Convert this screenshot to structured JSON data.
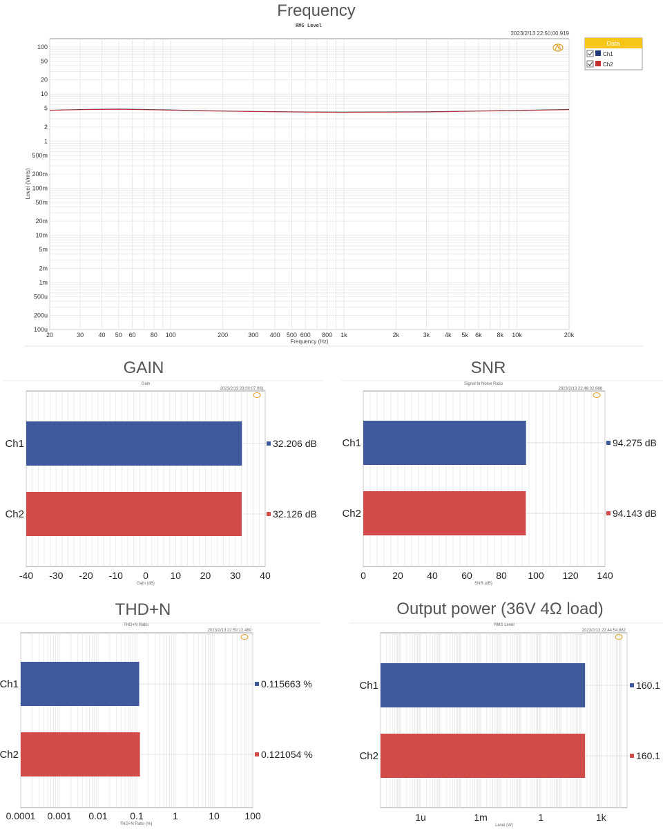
{
  "colors": {
    "ch1": "#3e5a9c",
    "ch2": "#d24b4b",
    "grid": "#dddddd",
    "legend_header": "#f5c518"
  },
  "icons": {
    "logo": "ap-logo-icon",
    "checkbox": "checkbox-checked-icon"
  },
  "chart_data": [
    {
      "type": "line",
      "title": "Frequency",
      "subtitle": "RMS Level",
      "timestamp": "2023/2/13 22:50:00.919",
      "xlabel": "Frequency (Hz)",
      "ylabel": "Level (Vrms)",
      "xscale": "log",
      "yscale": "log",
      "xlim": [
        20,
        20000
      ],
      "ylim": [
        0.0001,
        150
      ],
      "xticks": [
        {
          "v": 20,
          "l": "20"
        },
        {
          "v": 30,
          "l": "30"
        },
        {
          "v": 40,
          "l": "40"
        },
        {
          "v": 50,
          "l": "50"
        },
        {
          "v": 60,
          "l": "60"
        },
        {
          "v": 80,
          "l": "80"
        },
        {
          "v": 100,
          "l": "100"
        },
        {
          "v": 200,
          "l": "200"
        },
        {
          "v": 300,
          "l": "300"
        },
        {
          "v": 400,
          "l": "400"
        },
        {
          "v": 500,
          "l": "500"
        },
        {
          "v": 600,
          "l": "600"
        },
        {
          "v": 800,
          "l": "800"
        },
        {
          "v": 1000,
          "l": "1k"
        },
        {
          "v": 2000,
          "l": "2k"
        },
        {
          "v": 3000,
          "l": "3k"
        },
        {
          "v": 4000,
          "l": "4k"
        },
        {
          "v": 5000,
          "l": "5k"
        },
        {
          "v": 6000,
          "l": "6k"
        },
        {
          "v": 8000,
          "l": "8k"
        },
        {
          "v": 10000,
          "l": "10k"
        },
        {
          "v": 20000,
          "l": "20k"
        }
      ],
      "yticks": [
        {
          "v": 100,
          "l": "100"
        },
        {
          "v": 50,
          "l": "50"
        },
        {
          "v": 20,
          "l": "20"
        },
        {
          "v": 10,
          "l": "10"
        },
        {
          "v": 5,
          "l": "5"
        },
        {
          "v": 2,
          "l": "2"
        },
        {
          "v": 1,
          "l": "1"
        },
        {
          "v": 0.5,
          "l": "500m"
        },
        {
          "v": 0.2,
          "l": "200m"
        },
        {
          "v": 0.1,
          "l": "100m"
        },
        {
          "v": 0.05,
          "l": "50m"
        },
        {
          "v": 0.02,
          "l": "20m"
        },
        {
          "v": 0.01,
          "l": "10m"
        },
        {
          "v": 0.005,
          "l": "5m"
        },
        {
          "v": 0.002,
          "l": "2m"
        },
        {
          "v": 0.001,
          "l": "1m"
        },
        {
          "v": 0.0005,
          "l": "500u"
        },
        {
          "v": 0.0002,
          "l": "200u"
        },
        {
          "v": 0.0001,
          "l": "100u"
        }
      ],
      "legend": {
        "title": "Data",
        "position": "right"
      },
      "series": [
        {
          "name": "Ch1",
          "x": [
            20,
            30,
            50,
            80,
            150,
            300,
            600,
            1000,
            3000,
            6000,
            10000,
            20000
          ],
          "y": [
            4.55,
            4.7,
            4.8,
            4.68,
            4.45,
            4.3,
            4.18,
            4.15,
            4.22,
            4.38,
            4.5,
            4.72
          ]
        },
        {
          "name": "Ch2",
          "x": [
            20,
            30,
            50,
            80,
            150,
            300,
            600,
            1000,
            3000,
            6000,
            10000,
            20000
          ],
          "y": [
            4.5,
            4.65,
            4.75,
            4.63,
            4.4,
            4.25,
            4.13,
            4.1,
            4.17,
            4.33,
            4.45,
            4.67
          ]
        }
      ]
    },
    {
      "type": "bar",
      "title": "GAIN",
      "subtitle": "Gain",
      "timestamp": "2023/2/13 23:00:07.061",
      "xlabel": "Gain (dB)",
      "xlim": [
        -40,
        40
      ],
      "xticks": [
        {
          "v": -40,
          "l": "-40"
        },
        {
          "v": -30,
          "l": "-30"
        },
        {
          "v": -20,
          "l": "-20"
        },
        {
          "v": -10,
          "l": "-10"
        },
        {
          "v": 0,
          "l": "0"
        },
        {
          "v": 10,
          "l": "10"
        },
        {
          "v": 20,
          "l": "20"
        },
        {
          "v": 30,
          "l": "30"
        },
        {
          "v": 40,
          "l": "40"
        }
      ],
      "categories": [
        "Ch1",
        "Ch2"
      ],
      "values": [
        32.206,
        32.126
      ],
      "value_labels": [
        "32.206  dB",
        "32.126  dB"
      ]
    },
    {
      "type": "bar",
      "title": "SNR",
      "subtitle": "Signal to Noise Ratio",
      "timestamp": "2023/2/13 22:46:02.688",
      "xlabel": "SNR (dB)",
      "xlim": [
        0,
        140
      ],
      "xticks": [
        {
          "v": 0,
          "l": "0"
        },
        {
          "v": 20,
          "l": "20"
        },
        {
          "v": 40,
          "l": "40"
        },
        {
          "v": 60,
          "l": "60"
        },
        {
          "v": 80,
          "l": "80"
        },
        {
          "v": 100,
          "l": "100"
        },
        {
          "v": 120,
          "l": "120"
        },
        {
          "v": 140,
          "l": "140"
        }
      ],
      "categories": [
        "Ch1",
        "Ch2"
      ],
      "values": [
        94.275,
        94.143
      ],
      "value_labels": [
        "94.275  dB",
        "94.143  dB"
      ]
    },
    {
      "type": "bar",
      "title": "THD+N",
      "subtitle": "THD+N Ratio",
      "timestamp": "2023/2/13 22:50:12.480",
      "xlabel": "THD+N Ratio (%)",
      "xscale": "log",
      "xlim": [
        0.0001,
        100
      ],
      "xticks": [
        {
          "v": 0.0001,
          "l": "0.0001"
        },
        {
          "v": 0.001,
          "l": "0.001"
        },
        {
          "v": 0.01,
          "l": "0.01"
        },
        {
          "v": 0.1,
          "l": "0.1"
        },
        {
          "v": 1,
          "l": "1"
        },
        {
          "v": 10,
          "l": "10"
        },
        {
          "v": 100,
          "l": "100"
        }
      ],
      "categories": [
        "Ch1",
        "Ch2"
      ],
      "values": [
        0.115663,
        0.121054
      ],
      "value_labels": [
        "0.115663 %",
        "0.121054 %"
      ]
    },
    {
      "type": "bar",
      "title": "Output power (36V 4Ω load)",
      "subtitle": "RMS Level",
      "timestamp": "2023/2/13 22:44:54.882",
      "xlabel": "Level (W)",
      "xscale": "log",
      "xlim": [
        1e-08,
        20000
      ],
      "xticks": [
        {
          "v": 1e-06,
          "l": "1u"
        },
        {
          "v": 0.001,
          "l": "1m"
        },
        {
          "v": 1,
          "l": "1"
        },
        {
          "v": 1000,
          "l": "1k"
        }
      ],
      "categories": [
        "Ch1",
        "Ch2"
      ],
      "values": [
        160.1,
        160.1
      ],
      "value_labels": [
        "160.1",
        "160.1"
      ]
    }
  ]
}
